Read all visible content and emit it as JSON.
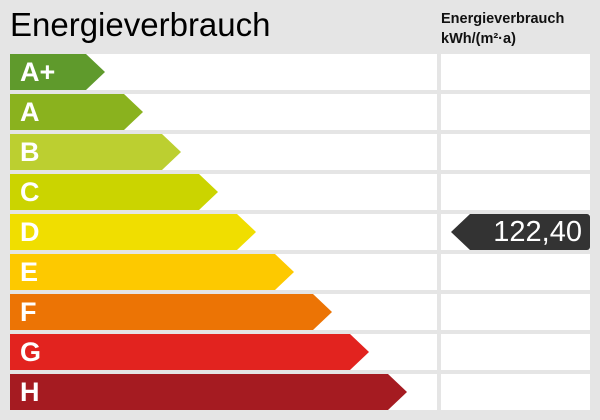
{
  "title": "Energieverbrauch",
  "column_header": {
    "line1": "Energieverbrauch",
    "line2": "kWh/(m²·a)"
  },
  "classes": [
    {
      "label": "A+",
      "color": "#5f9a2c"
    },
    {
      "label": "A",
      "color": "#8ab21e"
    },
    {
      "label": "B",
      "color": "#bccf30"
    },
    {
      "label": "C",
      "color": "#cbd400"
    },
    {
      "label": "D",
      "color": "#f0de00"
    },
    {
      "label": "E",
      "color": "#fdc900"
    },
    {
      "label": "F",
      "color": "#ec7405"
    },
    {
      "label": "G",
      "color": "#e2231f"
    },
    {
      "label": "H",
      "color": "#a51b21"
    }
  ],
  "marker": {
    "value": "122,40",
    "class": "D",
    "color": "#333333"
  }
}
